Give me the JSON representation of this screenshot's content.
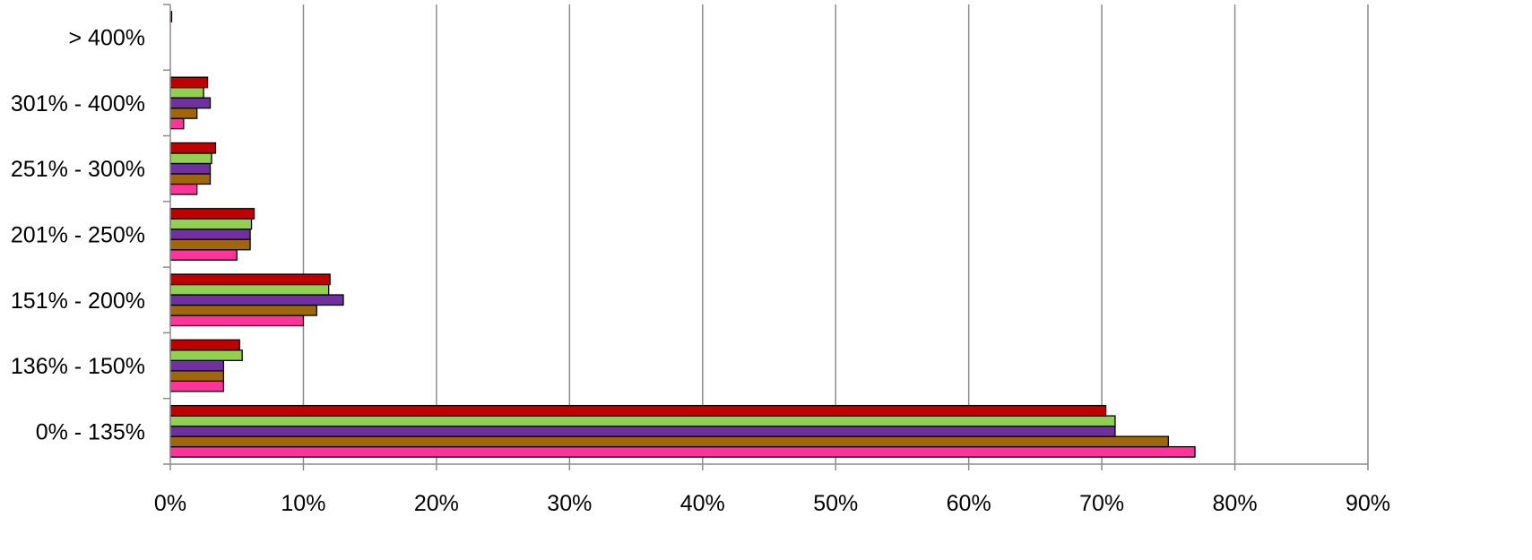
{
  "chart_data": {
    "type": "bar",
    "orientation": "horizontal",
    "categories": [
      "0% - 135%",
      "136% - 150%",
      "151% - 200%",
      "201% - 250%",
      "251% - 300%",
      "301% - 400%",
      "> 400%"
    ],
    "series": [
      {
        "color": "#ff3399",
        "values": [
          77,
          4,
          10,
          5,
          2,
          1,
          0
        ]
      },
      {
        "color": "#a0660a",
        "values": [
          75,
          4,
          11,
          6,
          3,
          2,
          0
        ]
      },
      {
        "color": "#7030a0",
        "values": [
          71,
          4,
          13,
          6,
          3,
          3,
          0
        ]
      },
      {
        "color": "#92d050",
        "values": [
          71,
          5.4,
          11.9,
          6.1,
          3.1,
          2.5,
          0
        ]
      },
      {
        "color": "#c00000",
        "values": [
          70.3,
          5.2,
          12,
          6.3,
          3.4,
          2.8,
          0.1
        ]
      }
    ],
    "x_ticks": [
      "0%",
      "10%",
      "20%",
      "30%",
      "40%",
      "50%",
      "60%",
      "70%",
      "80%",
      "90%"
    ],
    "xlim": [
      0,
      90
    ],
    "title": "",
    "xlabel": "",
    "ylabel": "",
    "grid": "vertical",
    "legend": "none"
  }
}
